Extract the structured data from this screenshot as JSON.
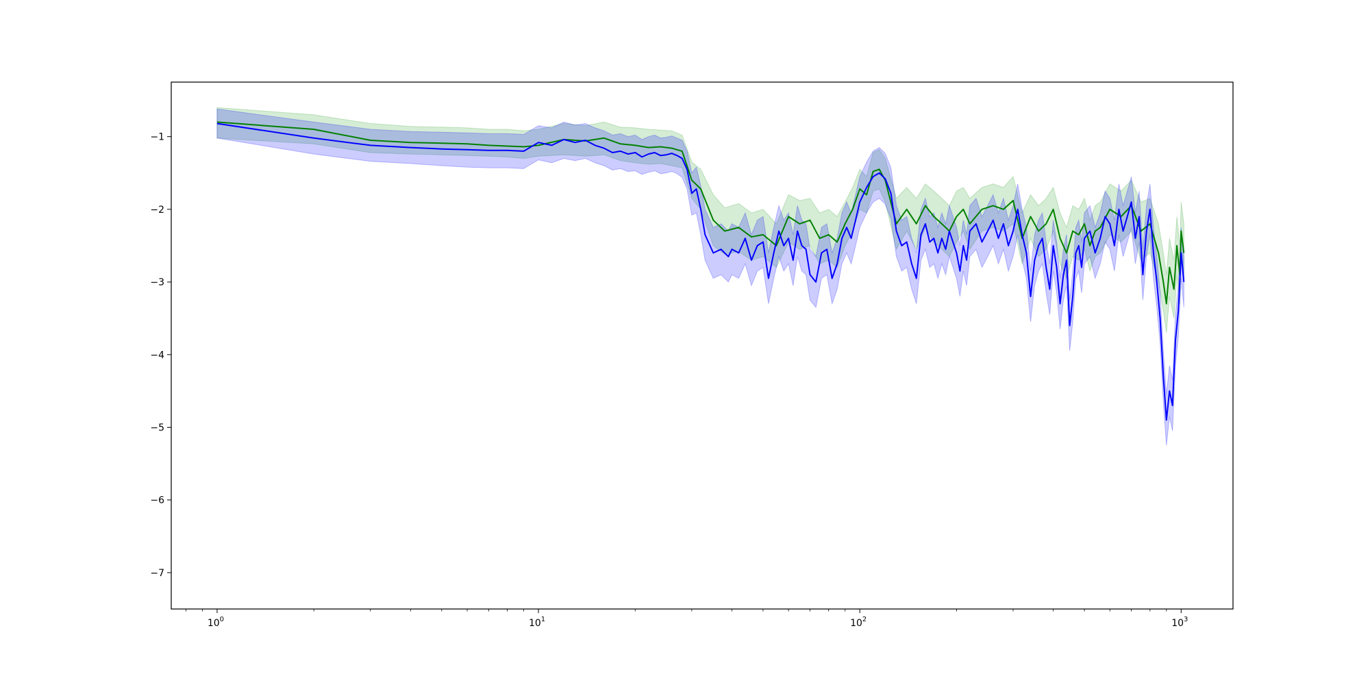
{
  "chart_data": {
    "type": "line",
    "title": "",
    "xlabel": "",
    "ylabel": "",
    "xscale": "log",
    "xlim": [
      0.72,
      1450
    ],
    "ylim": [
      -7.5,
      -0.25
    ],
    "grid": false,
    "legend": "none",
    "x_ticks": [
      {
        "value": 1,
        "base": "10",
        "exp": "0"
      },
      {
        "value": 10,
        "base": "10",
        "exp": "1"
      },
      {
        "value": 100,
        "base": "10",
        "exp": "2"
      },
      {
        "value": 1000,
        "base": "10",
        "exp": "3"
      }
    ],
    "y_ticks": [
      {
        "value": -1,
        "label": "−1"
      },
      {
        "value": -2,
        "label": "−2"
      },
      {
        "value": -3,
        "label": "−3"
      },
      {
        "value": -4,
        "label": "−4"
      },
      {
        "value": -5,
        "label": "−5"
      },
      {
        "value": -6,
        "label": "−6"
      },
      {
        "value": -7,
        "label": "−7"
      }
    ],
    "series": [
      {
        "color": "#008000",
        "band_color": "#2ca02c",
        "x": [
          1,
          2,
          3,
          4,
          5,
          6,
          7,
          8,
          9,
          10,
          12,
          14,
          16,
          18,
          20,
          22,
          24,
          26,
          28,
          30,
          32,
          35,
          38,
          42,
          46,
          50,
          55,
          60,
          65,
          70,
          75,
          80,
          85,
          90,
          95,
          100,
          105,
          110,
          115,
          120,
          130,
          140,
          150,
          160,
          170,
          180,
          190,
          200,
          210,
          220,
          240,
          260,
          280,
          300,
          320,
          340,
          360,
          380,
          400,
          420,
          440,
          460,
          480,
          500,
          520,
          540,
          560,
          600,
          650,
          700,
          750,
          800,
          850,
          880,
          900,
          920,
          950,
          970,
          990,
          1000,
          1020
        ],
        "y": [
          -0.8,
          -0.9,
          -1.05,
          -1.08,
          -1.09,
          -1.1,
          -1.12,
          -1.13,
          -1.14,
          -1.12,
          -1.04,
          -1.06,
          -1.02,
          -1.1,
          -1.12,
          -1.15,
          -1.14,
          -1.16,
          -1.2,
          -1.6,
          -1.72,
          -2.15,
          -2.3,
          -2.25,
          -2.38,
          -2.35,
          -2.5,
          -2.1,
          -2.2,
          -2.15,
          -2.4,
          -2.35,
          -2.45,
          -2.2,
          -2.0,
          -1.72,
          -1.8,
          -1.48,
          -1.45,
          -1.6,
          -2.2,
          -2.0,
          -2.2,
          -1.95,
          -2.1,
          -2.2,
          -2.3,
          -2.1,
          -2.0,
          -2.2,
          -2.0,
          -1.95,
          -2.0,
          -1.88,
          -2.4,
          -2.1,
          -2.3,
          -2.2,
          -2.0,
          -2.4,
          -2.6,
          -2.3,
          -2.35,
          -2.2,
          -2.5,
          -2.3,
          -2.25,
          -2.0,
          -2.1,
          -1.95,
          -2.3,
          -2.2,
          -2.6,
          -3.0,
          -3.3,
          -2.8,
          -3.1,
          -2.5,
          -2.9,
          -2.3,
          -2.6
        ],
        "lower": [
          -1.02,
          -1.1,
          -1.22,
          -1.24,
          -1.25,
          -1.26,
          -1.27,
          -1.28,
          -1.3,
          -1.27,
          -1.25,
          -1.27,
          -1.25,
          -1.33,
          -1.36,
          -1.38,
          -1.37,
          -1.4,
          -1.43,
          -1.85,
          -2.0,
          -2.5,
          -2.62,
          -2.58,
          -2.7,
          -2.65,
          -2.8,
          -2.45,
          -2.55,
          -2.5,
          -2.75,
          -2.7,
          -2.8,
          -2.5,
          -2.3,
          -2.0,
          -2.05,
          -1.75,
          -1.72,
          -1.9,
          -2.55,
          -2.3,
          -2.55,
          -2.25,
          -2.45,
          -2.55,
          -2.65,
          -2.45,
          -2.3,
          -2.55,
          -2.3,
          -2.25,
          -2.3,
          -2.2,
          -2.75,
          -2.4,
          -2.65,
          -2.55,
          -2.3,
          -2.75,
          -2.95,
          -2.65,
          -2.7,
          -2.55,
          -2.85,
          -2.65,
          -2.6,
          -2.35,
          -2.45,
          -2.3,
          -2.7,
          -2.6,
          -3.0,
          -3.4,
          -3.7,
          -3.2,
          -3.5,
          -2.9,
          -3.3,
          -2.7,
          -3.0
        ],
        "upper": [
          -0.6,
          -0.7,
          -0.82,
          -0.86,
          -0.87,
          -0.88,
          -0.9,
          -0.9,
          -0.92,
          -0.9,
          -0.82,
          -0.85,
          -0.8,
          -0.87,
          -0.88,
          -0.9,
          -0.91,
          -0.92,
          -0.98,
          -1.35,
          -1.45,
          -1.8,
          -1.98,
          -1.92,
          -2.05,
          -2.0,
          -2.2,
          -1.8,
          -1.88,
          -1.85,
          -2.05,
          -2.0,
          -2.1,
          -1.9,
          -1.7,
          -1.45,
          -1.55,
          -1.22,
          -1.18,
          -1.3,
          -1.85,
          -1.7,
          -1.85,
          -1.65,
          -1.75,
          -1.85,
          -1.95,
          -1.75,
          -1.7,
          -1.85,
          -1.7,
          -1.65,
          -1.7,
          -1.55,
          -2.05,
          -1.8,
          -1.95,
          -1.85,
          -1.7,
          -2.05,
          -2.25,
          -1.95,
          -2.0,
          -1.85,
          -2.15,
          -1.95,
          -1.9,
          -1.65,
          -1.75,
          -1.6,
          -1.9,
          -1.85,
          -2.2,
          -2.6,
          -2.9,
          -2.4,
          -2.7,
          -2.1,
          -2.5,
          -1.9,
          -2.2
        ]
      },
      {
        "color": "#0000ff",
        "band_color": "#0000ff",
        "x": [
          1,
          2,
          3,
          4,
          5,
          6,
          7,
          8,
          9,
          10,
          11,
          12,
          13,
          14,
          15,
          16,
          17,
          18,
          19,
          20,
          21,
          22,
          23,
          24,
          25,
          26,
          27,
          28,
          29,
          30,
          31,
          32,
          33,
          35,
          37,
          39,
          40,
          42,
          44,
          46,
          48,
          50,
          52,
          54,
          56,
          58,
          60,
          62,
          64,
          66,
          68,
          70,
          73,
          76,
          79,
          82,
          85,
          88,
          91,
          94,
          97,
          100,
          105,
          110,
          115,
          120,
          125,
          130,
          135,
          140,
          145,
          150,
          155,
          160,
          165,
          170,
          175,
          180,
          185,
          190,
          195,
          200,
          205,
          210,
          215,
          220,
          230,
          240,
          250,
          260,
          270,
          280,
          290,
          300,
          310,
          320,
          330,
          340,
          350,
          360,
          370,
          380,
          390,
          400,
          410,
          420,
          430,
          440,
          450,
          460,
          470,
          480,
          490,
          500,
          520,
          540,
          560,
          580,
          600,
          620,
          640,
          660,
          680,
          700,
          720,
          740,
          760,
          780,
          800,
          820,
          840,
          860,
          880,
          900,
          920,
          940,
          960,
          980,
          1000,
          1020
        ],
        "y": [
          -0.82,
          -1.02,
          -1.12,
          -1.15,
          -1.17,
          -1.18,
          -1.19,
          -1.19,
          -1.2,
          -1.08,
          -1.12,
          -1.04,
          -1.08,
          -1.05,
          -1.12,
          -1.16,
          -1.22,
          -1.2,
          -1.24,
          -1.22,
          -1.28,
          -1.24,
          -1.22,
          -1.26,
          -1.25,
          -1.23,
          -1.26,
          -1.3,
          -1.45,
          -1.78,
          -1.72,
          -2.0,
          -2.35,
          -2.6,
          -2.55,
          -2.65,
          -2.55,
          -2.6,
          -2.4,
          -2.7,
          -2.5,
          -2.45,
          -2.95,
          -2.6,
          -2.3,
          -2.5,
          -2.4,
          -2.7,
          -2.3,
          -2.5,
          -2.55,
          -2.9,
          -3.0,
          -2.6,
          -2.55,
          -2.95,
          -2.75,
          -2.4,
          -2.25,
          -2.4,
          -2.15,
          -1.9,
          -1.7,
          -1.55,
          -1.5,
          -1.58,
          -1.78,
          -2.3,
          -2.5,
          -2.45,
          -2.75,
          -2.95,
          -2.35,
          -2.2,
          -2.45,
          -2.4,
          -2.6,
          -2.4,
          -2.55,
          -2.3,
          -2.45,
          -2.6,
          -2.85,
          -2.5,
          -2.7,
          -2.3,
          -2.2,
          -2.45,
          -2.3,
          -2.15,
          -2.4,
          -2.2,
          -2.5,
          -2.3,
          -2.0,
          -2.35,
          -2.6,
          -3.2,
          -2.7,
          -2.5,
          -2.4,
          -2.8,
          -3.1,
          -2.5,
          -2.8,
          -3.3,
          -2.9,
          -2.7,
          -3.6,
          -3.2,
          -2.6,
          -2.5,
          -2.8,
          -2.4,
          -2.3,
          -2.6,
          -2.4,
          -2.1,
          -2.2,
          -2.5,
          -2.0,
          -2.3,
          -2.1,
          -1.9,
          -2.4,
          -2.1,
          -2.9,
          -2.3,
          -2.0,
          -2.6,
          -3.0,
          -3.5,
          -4.3,
          -4.9,
          -4.5,
          -4.7,
          -3.8,
          -3.4,
          -2.6,
          -3.0
        ],
        "lower": [
          -1.02,
          -1.24,
          -1.34,
          -1.37,
          -1.4,
          -1.42,
          -1.43,
          -1.43,
          -1.44,
          -1.32,
          -1.36,
          -1.3,
          -1.33,
          -1.3,
          -1.36,
          -1.4,
          -1.46,
          -1.44,
          -1.48,
          -1.47,
          -1.52,
          -1.49,
          -1.47,
          -1.51,
          -1.5,
          -1.48,
          -1.51,
          -1.56,
          -1.72,
          -2.08,
          -2.05,
          -2.35,
          -2.7,
          -2.95,
          -2.9,
          -3.0,
          -2.9,
          -2.95,
          -2.75,
          -3.05,
          -2.85,
          -2.8,
          -3.3,
          -2.95,
          -2.65,
          -2.85,
          -2.75,
          -3.05,
          -2.65,
          -2.85,
          -2.9,
          -3.25,
          -3.35,
          -2.95,
          -2.9,
          -3.3,
          -3.1,
          -2.75,
          -2.6,
          -2.75,
          -2.5,
          -2.25,
          -2.05,
          -1.9,
          -1.85,
          -1.93,
          -2.13,
          -2.65,
          -2.85,
          -2.8,
          -3.1,
          -3.3,
          -2.7,
          -2.55,
          -2.8,
          -2.75,
          -2.95,
          -2.75,
          -2.9,
          -2.65,
          -2.8,
          -2.95,
          -3.2,
          -2.85,
          -3.05,
          -2.65,
          -2.55,
          -2.8,
          -2.65,
          -2.5,
          -2.75,
          -2.55,
          -2.85,
          -2.65,
          -2.35,
          -2.7,
          -2.95,
          -3.55,
          -3.05,
          -2.85,
          -2.75,
          -3.15,
          -3.45,
          -2.85,
          -3.15,
          -3.65,
          -3.25,
          -3.05,
          -3.95,
          -3.55,
          -2.95,
          -2.85,
          -3.15,
          -2.75,
          -2.65,
          -2.95,
          -2.75,
          -2.45,
          -2.55,
          -2.85,
          -2.35,
          -2.65,
          -2.45,
          -2.25,
          -2.75,
          -2.45,
          -3.25,
          -2.65,
          -2.35,
          -2.95,
          -3.35,
          -3.85,
          -4.65,
          -5.25,
          -4.85,
          -5.05,
          -4.15,
          -3.75,
          -2.95,
          -3.35
        ],
        "upper": [
          -0.62,
          -0.8,
          -0.9,
          -0.93,
          -0.94,
          -0.95,
          -0.96,
          -0.96,
          -0.97,
          -0.85,
          -0.88,
          -0.8,
          -0.84,
          -0.82,
          -0.88,
          -0.92,
          -0.98,
          -0.96,
          -1.0,
          -0.98,
          -1.04,
          -1.0,
          -0.98,
          -1.02,
          -1.01,
          -0.99,
          -1.02,
          -1.05,
          -1.2,
          -1.5,
          -1.42,
          -1.68,
          -2.0,
          -2.25,
          -2.2,
          -2.3,
          -2.2,
          -2.25,
          -2.05,
          -2.35,
          -2.15,
          -2.1,
          -2.6,
          -2.25,
          -1.95,
          -2.15,
          -2.05,
          -2.35,
          -1.95,
          -2.15,
          -2.2,
          -2.55,
          -2.65,
          -2.25,
          -2.2,
          -2.6,
          -2.4,
          -2.05,
          -1.9,
          -2.05,
          -1.8,
          -1.55,
          -1.35,
          -1.2,
          -1.15,
          -1.23,
          -1.43,
          -1.95,
          -2.15,
          -2.1,
          -2.4,
          -2.6,
          -2.0,
          -1.85,
          -2.1,
          -2.05,
          -2.25,
          -2.05,
          -2.2,
          -1.95,
          -2.1,
          -2.25,
          -2.5,
          -2.15,
          -2.35,
          -1.95,
          -1.85,
          -2.1,
          -1.95,
          -1.8,
          -2.05,
          -1.85,
          -2.15,
          -1.95,
          -1.65,
          -2.0,
          -2.25,
          -2.85,
          -2.35,
          -2.15,
          -2.05,
          -2.45,
          -2.75,
          -2.15,
          -2.45,
          -2.95,
          -2.55,
          -2.35,
          -3.25,
          -2.85,
          -2.25,
          -2.15,
          -2.45,
          -2.05,
          -1.95,
          -2.25,
          -2.05,
          -1.75,
          -1.85,
          -2.15,
          -1.65,
          -1.95,
          -1.75,
          -1.55,
          -2.05,
          -1.75,
          -2.55,
          -1.95,
          -1.65,
          -2.25,
          -2.65,
          -3.15,
          -3.95,
          -4.55,
          -4.15,
          -4.35,
          -3.45,
          -3.05,
          -2.25,
          -2.65
        ]
      }
    ]
  }
}
